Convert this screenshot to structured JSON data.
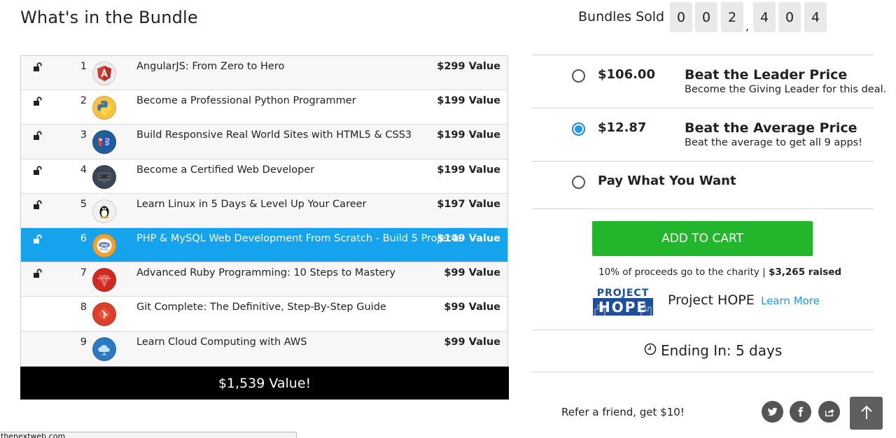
{
  "bundle": {
    "title": "What's in the Bundle",
    "items": [
      {
        "num": "1",
        "name": "AngularJS: From Zero to Hero",
        "value": "$299 Value",
        "icon": "angular-icon",
        "locked": true
      },
      {
        "num": "2",
        "name": "Become a Professional Python Programmer",
        "value": "$199 Value",
        "icon": "python-icon",
        "locked": true
      },
      {
        "num": "3",
        "name": "Build Responsive Real World Sites with HTML5 & CSS3",
        "value": "$199 Value",
        "icon": "html5-css3-icon",
        "locked": true
      },
      {
        "num": "4",
        "name": "Become a Certified Web Developer",
        "value": "$199 Value",
        "icon": "web-developer-icon",
        "locked": true
      },
      {
        "num": "5",
        "name": "Learn Linux in 5 Days & Level Up Your Career",
        "value": "$197 Value",
        "icon": "linux-tux-icon",
        "locked": true
      },
      {
        "num": "6",
        "name": "PHP & MySQL Web Development From Scratch - Build 5 Projects",
        "value": "$149 Value",
        "icon": "php-mysql-icon",
        "locked": true,
        "highlighted": true
      },
      {
        "num": "7",
        "name": "Advanced Ruby Programming: 10 Steps to Mastery",
        "value": "$99 Value",
        "icon": "ruby-icon",
        "locked": true
      },
      {
        "num": "8",
        "name": "Git Complete: The Definitive, Step-By-Step Guide",
        "value": "$99 Value",
        "icon": "git-icon",
        "locked": false
      },
      {
        "num": "9",
        "name": "Learn Cloud Computing with AWS",
        "value": "$99 Value",
        "icon": "cloud-icon",
        "locked": false
      }
    ],
    "total": "$1,539 Value!"
  },
  "sold": {
    "label": "Bundles Sold",
    "digits": [
      "0",
      "0",
      "2",
      "4",
      "0",
      "4"
    ],
    "separator": ","
  },
  "options": [
    {
      "price": "$106.00",
      "heading": "Beat the Leader Price",
      "sub": "Become the Giving Leader for this deal.",
      "selected": false
    },
    {
      "price": "$12.87",
      "heading": "Beat the Average Price",
      "sub": "Beat the average to get all 9 apps!",
      "selected": true
    },
    {
      "label": "Pay What You Want",
      "selected": false
    }
  ],
  "cart": {
    "label": "ADD TO CART"
  },
  "charity": {
    "line_prefix": "10% of proceeds go to the charity",
    "raised": "$3,265 raised",
    "name": "Project HOPE",
    "learn_more": "Learn More",
    "logo_text_1": "PROJECT",
    "logo_text_2": "HOPE"
  },
  "ending": {
    "label": "Ending In: 5 days"
  },
  "refer": {
    "label": "Refer a friend, get $10!"
  },
  "status_url": "thenextweb.com",
  "colors": {
    "highlight": "#16a3ee",
    "cart_green": "#23b52b",
    "link_blue": "#1a9be8",
    "radio_blue": "#1e9bf0"
  }
}
